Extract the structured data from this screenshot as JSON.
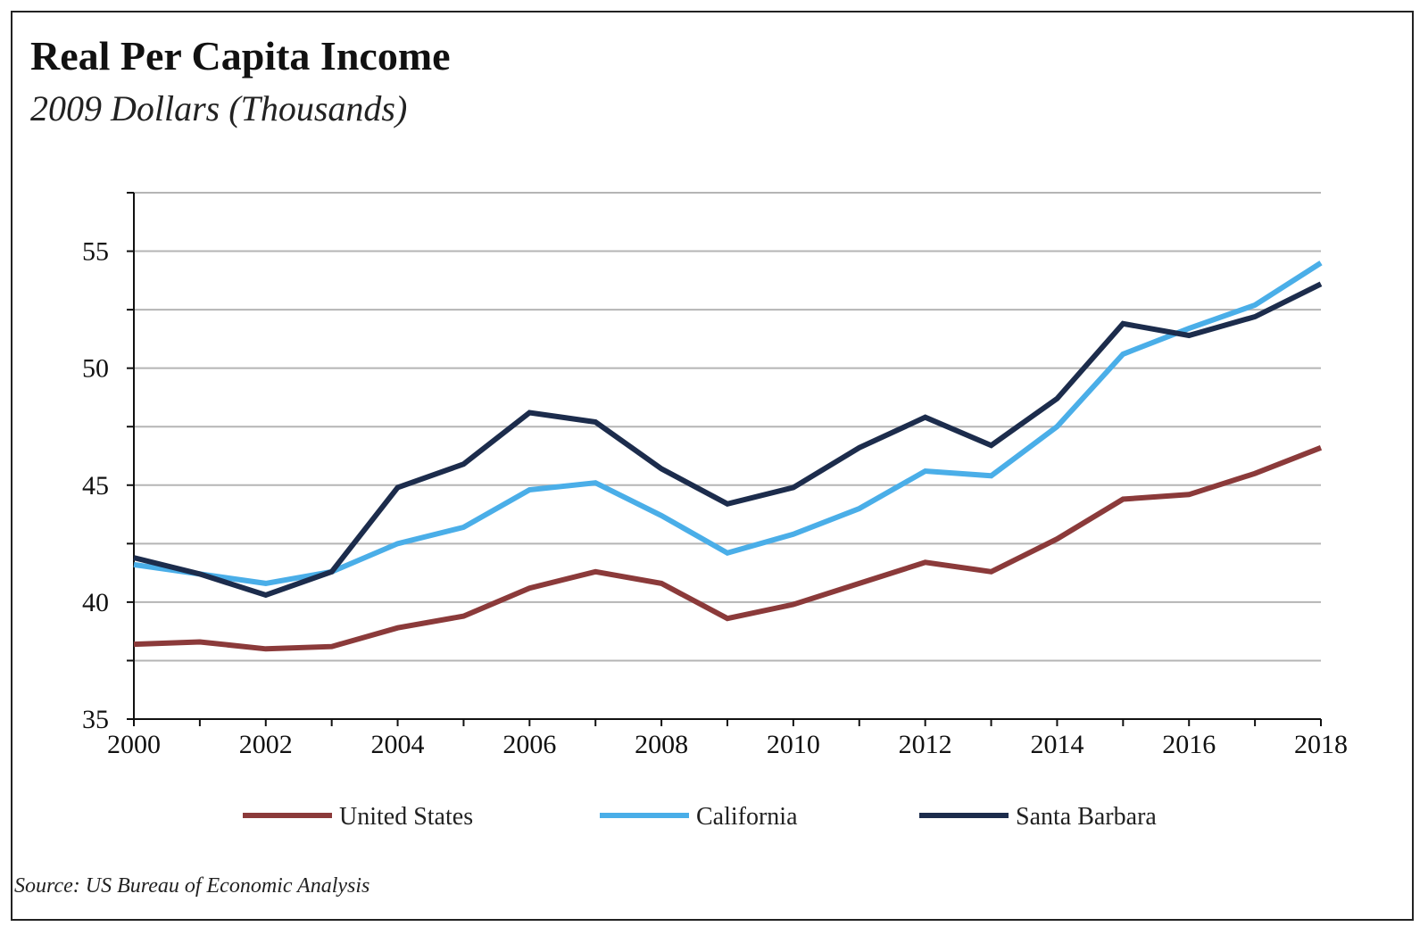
{
  "chart_data": {
    "type": "line",
    "title": "Real Per Capita Income",
    "subtitle": "2009 Dollars (Thousands)",
    "xlabel": "",
    "ylabel": "",
    "xlim": [
      2000,
      2018
    ],
    "ylim": [
      35,
      57.5
    ],
    "x_ticks": [
      "2000",
      "2002",
      "2004",
      "2006",
      "2008",
      "2010",
      "2012",
      "2014",
      "2016",
      "2018"
    ],
    "y_ticks": [
      "35",
      "40",
      "45",
      "50",
      "55"
    ],
    "gridlines_every": 2.5,
    "grid": true,
    "legend_position": "bottom",
    "x": [
      2000,
      2001,
      2002,
      2003,
      2004,
      2005,
      2006,
      2007,
      2008,
      2009,
      2010,
      2011,
      2012,
      2013,
      2014,
      2015,
      2016,
      2017,
      2018
    ],
    "series": [
      {
        "name": "United States",
        "color": "#8b3a3a",
        "values": [
          38.2,
          38.3,
          38.0,
          38.1,
          38.9,
          39.4,
          40.6,
          41.3,
          40.8,
          39.3,
          39.9,
          40.8,
          41.7,
          41.3,
          42.7,
          44.4,
          44.6,
          45.5,
          46.6
        ]
      },
      {
        "name": "California",
        "color": "#4aaee8",
        "values": [
          41.6,
          41.2,
          40.8,
          41.3,
          42.5,
          43.2,
          44.8,
          45.1,
          43.7,
          42.1,
          42.9,
          44.0,
          45.6,
          45.4,
          47.5,
          50.6,
          51.7,
          52.7,
          54.5
        ]
      },
      {
        "name": "Santa Barbara",
        "color": "#1c2c4c",
        "values": [
          41.9,
          41.2,
          40.3,
          41.3,
          44.9,
          45.9,
          48.1,
          47.7,
          45.7,
          44.2,
          44.9,
          46.6,
          47.9,
          46.7,
          48.7,
          51.9,
          51.4,
          52.2,
          53.6
        ]
      }
    ]
  },
  "source": "Source:  US Bureau of Economic Analysis"
}
